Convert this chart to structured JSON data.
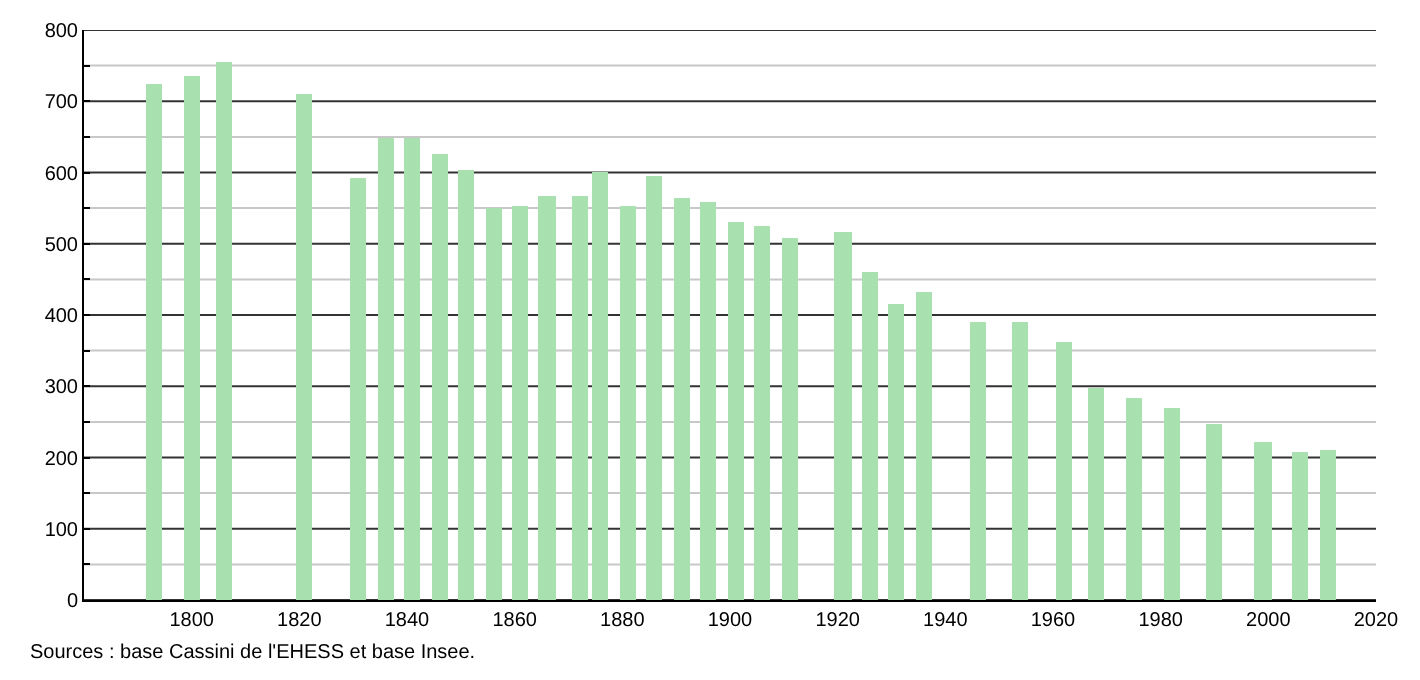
{
  "chart_data": {
    "type": "bar",
    "color": "#a8e0b0",
    "x": [
      1793,
      1800,
      1806,
      1821,
      1831,
      1836,
      1841,
      1846,
      1851,
      1856,
      1861,
      1866,
      1872,
      1876,
      1881,
      1886,
      1891,
      1896,
      1901,
      1906,
      1911,
      1921,
      1926,
      1931,
      1936,
      1946,
      1954,
      1962,
      1968,
      1975,
      1982,
      1990,
      1999,
      2006,
      2011
    ],
    "values": [
      723,
      735,
      755,
      710,
      592,
      648,
      648,
      625,
      603,
      550,
      553,
      568,
      568,
      600,
      553,
      594,
      564,
      558,
      530,
      525,
      508,
      517,
      461,
      415,
      432,
      390,
      390,
      362,
      298,
      284,
      270,
      248,
      222,
      207,
      210
    ],
    "xlim": [
      1780,
      2020
    ],
    "xticks": [
      1800,
      1820,
      1840,
      1860,
      1880,
      1900,
      1920,
      1940,
      1960,
      1980,
      2000,
      2020
    ],
    "ylim": [
      0,
      800
    ],
    "yticks": [
      0,
      {
        "value": 50,
        "label": null
      },
      100,
      {
        "value": 150,
        "label": null
      },
      200,
      {
        "value": 250,
        "label": null
      },
      300,
      {
        "value": 350,
        "label": null
      },
      400,
      {
        "value": 450,
        "label": null
      },
      500,
      {
        "value": 550,
        "label": null
      },
      600,
      {
        "value": 650,
        "label": null
      },
      700,
      {
        "value": 750,
        "label": null
      },
      800
    ],
    "grid": "y",
    "annotations": [
      "Sources : base Cassini de l'EHESS et base Insee."
    ]
  }
}
